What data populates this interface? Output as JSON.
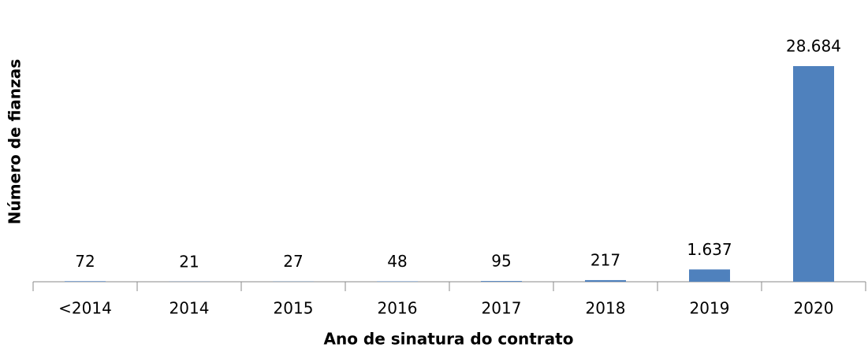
{
  "chart_data": {
    "type": "bar",
    "x_label": "Ano de sinatura do contrato",
    "y_label": "Número de fianzas",
    "categories": [
      "<2014",
      "2014",
      "2015",
      "2016",
      "2017",
      "2018",
      "2019",
      "2020"
    ],
    "values": [
      72,
      21,
      27,
      48,
      95,
      217,
      1637,
      28684
    ],
    "value_labels": [
      "72",
      "21",
      "27",
      "48",
      "95",
      "217",
      "1.637",
      "28.684"
    ],
    "color": "#4f81bd"
  }
}
